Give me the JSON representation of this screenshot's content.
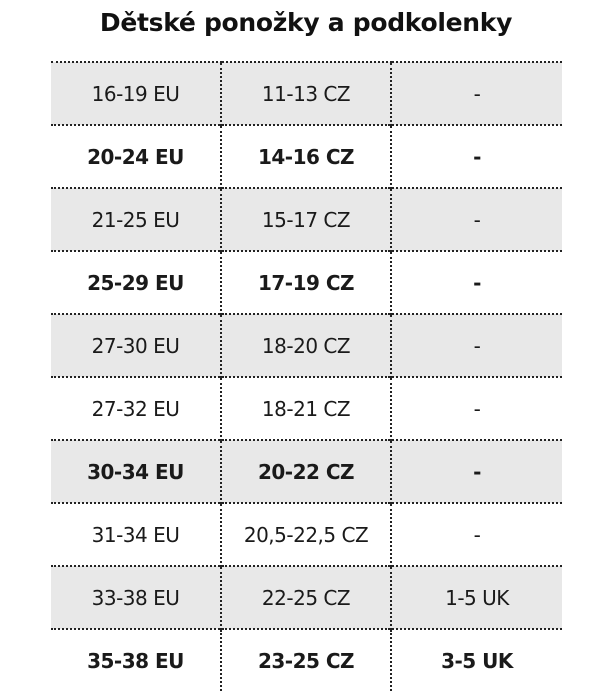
{
  "title": "Dětské ponožky a podkolenky",
  "colors": {
    "row_shade": "#e8e8e8",
    "border": "#222222",
    "text": "#1a1a1a"
  },
  "rows": [
    {
      "eu": "16-19 EU",
      "cz": "11-13 CZ",
      "uk": "-",
      "shaded": true,
      "bold": false
    },
    {
      "eu": "20-24 EU",
      "cz": "14-16 CZ",
      "uk": "-",
      "shaded": false,
      "bold": true
    },
    {
      "eu": "21-25 EU",
      "cz": "15-17 CZ",
      "uk": "-",
      "shaded": true,
      "bold": false
    },
    {
      "eu": "25-29 EU",
      "cz": "17-19 CZ",
      "uk": "-",
      "shaded": false,
      "bold": true
    },
    {
      "eu": "27-30 EU",
      "cz": "18-20 CZ",
      "uk": "-",
      "shaded": true,
      "bold": false
    },
    {
      "eu": "27-32 EU",
      "cz": "18-21 CZ",
      "uk": "-",
      "shaded": false,
      "bold": false
    },
    {
      "eu": "30-34 EU",
      "cz": "20-22 CZ",
      "uk": "-",
      "shaded": true,
      "bold": true
    },
    {
      "eu": "31-34 EU",
      "cz": "20,5-22,5 CZ",
      "uk": "-",
      "shaded": false,
      "bold": false
    },
    {
      "eu": "33-38 EU",
      "cz": "22-25 CZ",
      "uk": "1-5 UK",
      "shaded": true,
      "bold": false
    },
    {
      "eu": "35-38 EU",
      "cz": "23-25 CZ",
      "uk": "3-5 UK",
      "shaded": false,
      "bold": true
    }
  ]
}
